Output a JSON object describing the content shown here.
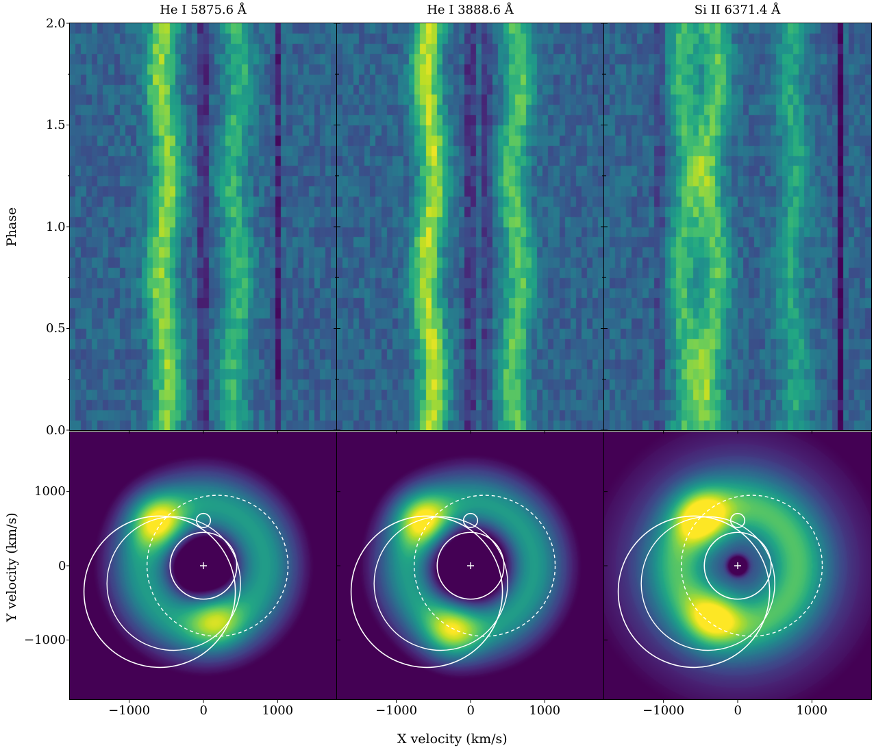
{
  "chart_data": [
    {
      "type": "heatmap",
      "title": "He I 5875.6 Å",
      "ylabel": "Phase",
      "ylim": [
        0.0,
        2.0
      ],
      "yticks": [
        "0.0",
        "0.5",
        "1.0",
        "1.5",
        "2.0"
      ],
      "xlim": [
        -1800,
        1800
      ],
      "colormap": "viridis",
      "emission_bands_kms": [
        {
          "center": -520,
          "strength": 0.85
        },
        {
          "center": 440,
          "strength": 0.55
        }
      ],
      "absorption_bands_kms": [
        {
          "center": 0,
          "strength": 0.9
        },
        {
          "center": 1010,
          "strength": 0.6
        }
      ]
    },
    {
      "type": "heatmap",
      "title": "He I 3888.6 Å",
      "ylim": [
        0.0,
        2.0
      ],
      "xlim": [
        -1800,
        1800
      ],
      "colormap": "viridis",
      "emission_bands_kms": [
        {
          "center": -540,
          "strength": 0.95
        },
        {
          "center": 620,
          "strength": 0.7
        }
      ],
      "absorption_bands_kms": [
        {
          "center": 0,
          "strength": 0.8
        },
        {
          "center": 220,
          "strength": 0.6
        }
      ]
    },
    {
      "type": "heatmap",
      "title": "Si II 6371.4 Å",
      "ylim": [
        0.0,
        2.0
      ],
      "xlim": [
        -1800,
        1800
      ],
      "colormap": "viridis",
      "emission_bands_kms": [
        {
          "center": -700,
          "strength": 0.6
        },
        {
          "center": -330,
          "strength": 0.7
        },
        {
          "center": 750,
          "strength": 0.45
        }
      ],
      "absorption_bands_kms": [
        {
          "center": -1050,
          "strength": 0.5
        },
        {
          "center": 1380,
          "strength": 0.9
        }
      ]
    },
    {
      "type": "heatmap",
      "subtype": "doppler-tomogram",
      "xlabel": "X velocity (km/s)",
      "ylabel": "Y velocity (km/s)",
      "xlim": [
        -1800,
        1800
      ],
      "ylim": [
        -1800,
        1800
      ],
      "xticks": [
        "−1000",
        "0",
        "1000"
      ],
      "yticks": [
        "−1000",
        "0",
        "1000"
      ],
      "ring_radius_kms": 830,
      "hot_spots_kms": [
        {
          "x": -620,
          "y": 600,
          "strength": 1.0
        },
        {
          "x": 150,
          "y": -720,
          "strength": 0.75
        }
      ],
      "center_depression_radius_kms": 450,
      "overlays": {
        "primary_roche_lobe_radius_kms": 450,
        "secondary_loop_center_kms": [
          0,
          610
        ],
        "dashed_circle_center_kms": [
          190,
          0
        ],
        "dashed_circle_radius_kms": 950,
        "stream_arcs": true,
        "center_marker": "+"
      }
    },
    {
      "type": "heatmap",
      "subtype": "doppler-tomogram",
      "xlabel": "X velocity (km/s)",
      "xlim": [
        -1800,
        1800
      ],
      "ylim": [
        -1800,
        1800
      ],
      "xticks": [
        "−1000",
        "0",
        "1000"
      ],
      "ring_radius_kms": 850,
      "hot_spots_kms": [
        {
          "x": -650,
          "y": 620,
          "strength": 1.0
        },
        {
          "x": -250,
          "y": -880,
          "strength": 0.85
        }
      ],
      "center_depression_radius_kms": 580,
      "overlays": {
        "primary_roche_lobe_radius_kms": 450,
        "secondary_loop_center_kms": [
          0,
          610
        ],
        "dashed_circle_center_kms": [
          190,
          0
        ],
        "dashed_circle_radius_kms": 950,
        "stream_arcs": true,
        "center_marker": "+"
      }
    },
    {
      "type": "heatmap",
      "subtype": "doppler-tomogram",
      "xlabel": "X velocity (km/s)",
      "xlim": [
        -1800,
        1800
      ],
      "ylim": [
        -1800,
        1800
      ],
      "xticks": [
        "−1000",
        "0",
        "1000"
      ],
      "ring_radius_kms": 800,
      "hot_spots_kms": [
        {
          "x": -480,
          "y": 650,
          "strength": 1.0
        },
        {
          "x": -320,
          "y": -700,
          "strength": 0.8
        }
      ],
      "center_depression_radius_kms": 150,
      "overlays": {
        "primary_roche_lobe_radius_kms": 450,
        "secondary_loop_center_kms": [
          0,
          610
        ],
        "dashed_circle_center_kms": [
          190,
          0
        ],
        "dashed_circle_radius_kms": 950,
        "stream_arcs": true,
        "center_marker": "+"
      }
    }
  ],
  "labels": {
    "phase_axis": "Phase",
    "y_velocity_axis": "Y velocity (km/s)",
    "x_velocity_axis": "X velocity (km/s)"
  }
}
